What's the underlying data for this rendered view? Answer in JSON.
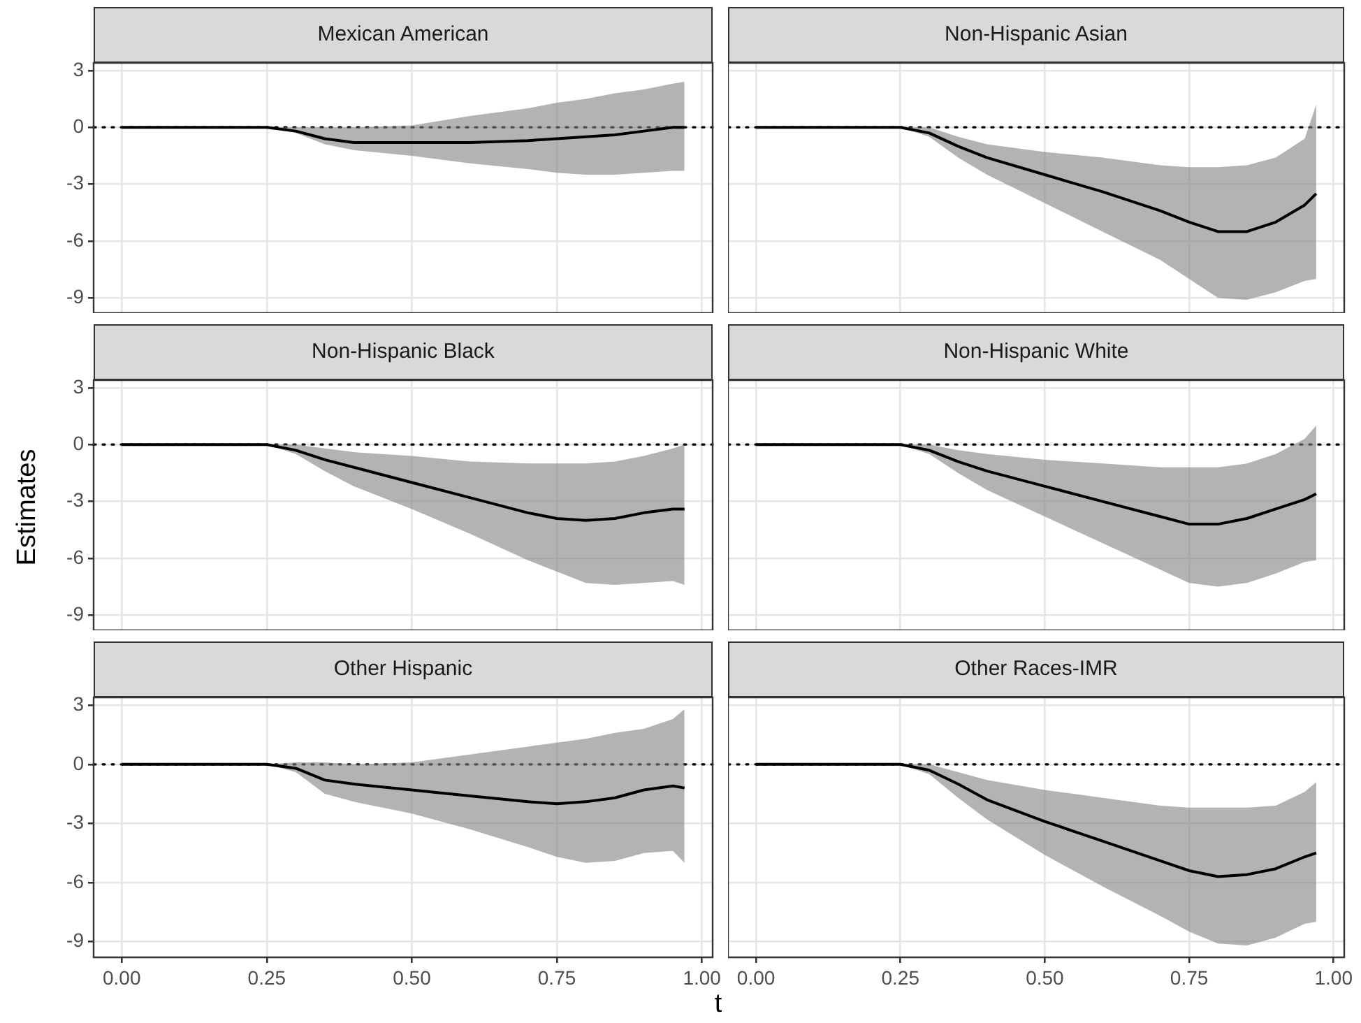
{
  "chart_data": [
    {
      "type": "line",
      "title": "Mexican American",
      "x": [
        0,
        0.1,
        0.2,
        0.25,
        0.3,
        0.35,
        0.4,
        0.5,
        0.6,
        0.7,
        0.75,
        0.8,
        0.85,
        0.9,
        0.95,
        0.97
      ],
      "series": [
        {
          "color": "#000000",
          "values": [
            0,
            0,
            0,
            0,
            -0.2,
            -0.6,
            -0.8,
            -0.8,
            -0.8,
            -0.7,
            -0.6,
            -0.5,
            -0.4,
            -0.2,
            0,
            0
          ],
          "lower": [
            0,
            0,
            0,
            0,
            -0.3,
            -0.9,
            -1.2,
            -1.5,
            -1.9,
            -2.2,
            -2.4,
            -2.5,
            -2.5,
            -2.4,
            -2.3,
            -2.3
          ],
          "upper": [
            0,
            0,
            0,
            0,
            0,
            0,
            0,
            0.1,
            0.6,
            1,
            1.3,
            1.5,
            1.8,
            2,
            2.3,
            2.4
          ]
        }
      ],
      "xlim": [
        -0.0485,
        1.0185
      ],
      "ylim": [
        -9.8,
        3.4
      ],
      "xticks": [
        0,
        0.25,
        0.5,
        0.75,
        1
      ],
      "yticks": [
        -9,
        -6,
        -3,
        0,
        3
      ],
      "grid": true,
      "ref_lines": [
        {
          "axis": "y",
          "value": 0,
          "line_style": "dotted",
          "color": "#000000"
        }
      ],
      "tick_labels": "y"
    },
    {
      "type": "line",
      "title": "Non-Hispanic Asian",
      "x": [
        0,
        0.1,
        0.2,
        0.25,
        0.3,
        0.35,
        0.4,
        0.5,
        0.6,
        0.7,
        0.75,
        0.8,
        0.85,
        0.9,
        0.95,
        0.97
      ],
      "series": [
        {
          "color": "#000000",
          "values": [
            0,
            0,
            0,
            0,
            -0.3,
            -1,
            -1.6,
            -2.5,
            -3.4,
            -4.4,
            -5,
            -5.5,
            -5.5,
            -5,
            -4.1,
            -3.5
          ],
          "lower": [
            0,
            0,
            0,
            0,
            -0.5,
            -1.6,
            -2.5,
            -4,
            -5.5,
            -7,
            -8,
            -9,
            -9.1,
            -8.7,
            -8.1,
            -8
          ],
          "upper": [
            0,
            0,
            0,
            0,
            0,
            -0.5,
            -0.9,
            -1.3,
            -1.6,
            -2,
            -2.1,
            -2.1,
            -2,
            -1.6,
            -0.6,
            1.2
          ]
        }
      ],
      "xlim": [
        -0.0485,
        1.0185
      ],
      "ylim": [
        -9.8,
        3.4
      ],
      "xticks": [
        0,
        0.25,
        0.5,
        0.75,
        1
      ],
      "yticks": [
        -9,
        -6,
        -3,
        0,
        3
      ],
      "grid": true,
      "ref_lines": [
        {
          "axis": "y",
          "value": 0,
          "line_style": "dotted",
          "color": "#000000"
        }
      ],
      "tick_labels": false
    },
    {
      "type": "line",
      "title": "Non-Hispanic Black",
      "ylabel": "Estimates",
      "x": [
        0,
        0.1,
        0.2,
        0.25,
        0.3,
        0.35,
        0.4,
        0.5,
        0.6,
        0.7,
        0.75,
        0.8,
        0.85,
        0.9,
        0.95,
        0.97
      ],
      "series": [
        {
          "color": "#000000",
          "values": [
            0,
            0,
            0,
            0,
            -0.3,
            -0.8,
            -1.2,
            -2,
            -2.8,
            -3.6,
            -3.9,
            -4,
            -3.9,
            -3.6,
            -3.4,
            -3.4
          ],
          "lower": [
            0,
            0,
            0,
            0,
            -0.5,
            -1.4,
            -2.2,
            -3.4,
            -4.7,
            -6.1,
            -6.7,
            -7.3,
            -7.4,
            -7.3,
            -7.2,
            -7.4
          ],
          "upper": [
            0,
            0,
            0,
            0,
            0,
            -0.2,
            -0.4,
            -0.6,
            -0.9,
            -1,
            -1,
            -1,
            -0.9,
            -0.6,
            -0.2,
            0
          ]
        }
      ],
      "xlim": [
        -0.0485,
        1.0185
      ],
      "ylim": [
        -9.8,
        3.4
      ],
      "xticks": [
        0,
        0.25,
        0.5,
        0.75,
        1
      ],
      "yticks": [
        -9,
        -6,
        -3,
        0,
        3
      ],
      "grid": true,
      "ref_lines": [
        {
          "axis": "y",
          "value": 0,
          "line_style": "dotted",
          "color": "#000000"
        }
      ],
      "tick_labels": "y"
    },
    {
      "type": "line",
      "title": "Non-Hispanic White",
      "x": [
        0,
        0.1,
        0.2,
        0.25,
        0.3,
        0.35,
        0.4,
        0.5,
        0.6,
        0.7,
        0.75,
        0.8,
        0.85,
        0.9,
        0.95,
        0.97
      ],
      "series": [
        {
          "color": "#000000",
          "values": [
            0,
            0,
            0,
            0,
            -0.3,
            -0.9,
            -1.4,
            -2.2,
            -3,
            -3.8,
            -4.2,
            -4.2,
            -3.9,
            -3.4,
            -2.9,
            -2.6
          ],
          "lower": [
            0,
            0,
            0,
            0,
            -0.5,
            -1.5,
            -2.4,
            -3.8,
            -5.2,
            -6.6,
            -7.3,
            -7.5,
            -7.3,
            -6.8,
            -6.2,
            -6.1
          ],
          "upper": [
            0,
            0,
            0,
            0,
            0,
            -0.3,
            -0.5,
            -0.8,
            -1,
            -1.2,
            -1.2,
            -1.2,
            -1,
            -0.5,
            0.3,
            1
          ]
        }
      ],
      "xlim": [
        -0.0485,
        1.0185
      ],
      "ylim": [
        -9.8,
        3.4
      ],
      "xticks": [
        0,
        0.25,
        0.5,
        0.75,
        1
      ],
      "yticks": [
        -9,
        -6,
        -3,
        0,
        3
      ],
      "grid": true,
      "ref_lines": [
        {
          "axis": "y",
          "value": 0,
          "line_style": "dotted",
          "color": "#000000"
        }
      ],
      "tick_labels": false
    },
    {
      "type": "line",
      "title": "Other Hispanic",
      "xlabel": "t",
      "x": [
        0,
        0.1,
        0.2,
        0.25,
        0.3,
        0.35,
        0.4,
        0.5,
        0.6,
        0.7,
        0.75,
        0.8,
        0.85,
        0.9,
        0.95,
        0.97
      ],
      "series": [
        {
          "color": "#000000",
          "values": [
            0,
            0,
            0,
            0,
            -0.2,
            -0.8,
            -1,
            -1.3,
            -1.6,
            -1.9,
            -2,
            -1.9,
            -1.7,
            -1.3,
            -1.1,
            -1.2
          ],
          "lower": [
            0,
            0,
            0,
            0,
            -0.4,
            -1.5,
            -1.9,
            -2.5,
            -3.3,
            -4.2,
            -4.7,
            -5,
            -4.9,
            -4.5,
            -4.4,
            -5
          ],
          "upper": [
            0,
            0,
            0,
            0,
            0.1,
            0.1,
            0,
            0.1,
            0.5,
            0.9,
            1.1,
            1.3,
            1.6,
            1.8,
            2.3,
            2.8
          ]
        }
      ],
      "xlim": [
        -0.0485,
        1.0185
      ],
      "ylim": [
        -9.8,
        3.4
      ],
      "xticks": [
        {
          "value": 0,
          "label": "0.00"
        },
        {
          "value": 0.25,
          "label": "0.25"
        },
        {
          "value": 0.5,
          "label": "0.50"
        },
        {
          "value": 0.75,
          "label": "0.75"
        },
        {
          "value": 1,
          "label": "1.00"
        }
      ],
      "yticks": [
        -9,
        -6,
        -3,
        0,
        3
      ],
      "grid": true,
      "ref_lines": [
        {
          "axis": "y",
          "value": 0,
          "line_style": "dotted",
          "color": "#000000"
        }
      ]
    },
    {
      "type": "line",
      "title": "Other Races-IMR",
      "x": [
        0,
        0.1,
        0.2,
        0.25,
        0.3,
        0.35,
        0.4,
        0.5,
        0.6,
        0.7,
        0.75,
        0.8,
        0.85,
        0.9,
        0.95,
        0.97
      ],
      "series": [
        {
          "color": "#000000",
          "values": [
            0,
            0,
            0,
            0,
            -0.3,
            -1,
            -1.8,
            -2.9,
            -3.9,
            -4.9,
            -5.4,
            -5.7,
            -5.6,
            -5.3,
            -4.7,
            -4.5
          ],
          "lower": [
            0,
            0,
            0,
            0,
            -0.5,
            -1.7,
            -2.8,
            -4.6,
            -6.2,
            -7.7,
            -8.5,
            -9.1,
            -9.2,
            -8.8,
            -8.1,
            -8
          ],
          "upper": [
            0,
            0,
            0,
            0,
            0,
            -0.4,
            -0.8,
            -1.3,
            -1.7,
            -2.1,
            -2.2,
            -2.2,
            -2.2,
            -2.1,
            -1.4,
            -0.9
          ]
        }
      ],
      "xlim": [
        -0.0485,
        1.0185
      ],
      "ylim": [
        -9.8,
        3.4
      ],
      "xticks": [
        {
          "value": 0,
          "label": "0.00"
        },
        {
          "value": 0.25,
          "label": "0.25"
        },
        {
          "value": 0.5,
          "label": "0.50"
        },
        {
          "value": 0.75,
          "label": "0.75"
        },
        {
          "value": 1,
          "label": "1.00"
        }
      ],
      "yticks": [
        -9,
        -6,
        -3,
        0,
        3
      ],
      "grid": true,
      "ref_lines": [
        {
          "axis": "y",
          "value": 0,
          "line_style": "dotted",
          "color": "#000000"
        }
      ],
      "tick_labels": "x"
    }
  ]
}
